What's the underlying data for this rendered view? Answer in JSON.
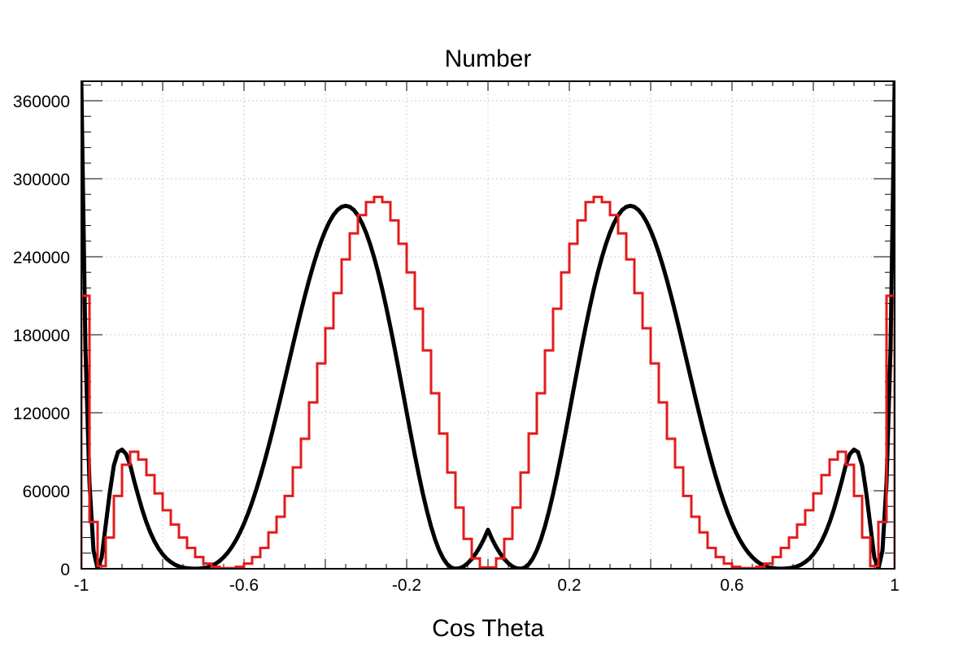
{
  "chart_data": {
    "type": "line",
    "title": "Number",
    "xlabel": "Cos Theta",
    "ylabel": "",
    "xlim": [
      -1,
      1
    ],
    "ylim": [
      0,
      375000
    ],
    "xticks": [
      -1,
      -0.6,
      -0.2,
      0.2,
      0.6,
      1
    ],
    "xtick_labels": [
      "-1",
      "-0.6",
      "-0.2",
      "0.2",
      "0.6",
      "1"
    ],
    "yticks": [
      0,
      60000,
      120000,
      180000,
      240000,
      300000,
      360000
    ],
    "ytick_labels": [
      "0",
      "60000",
      "120000",
      "180000",
      "240000",
      "300000",
      "360000"
    ],
    "grid": true,
    "series": [
      {
        "style": "smooth-curve",
        "color": "#000000",
        "x": [
          -1.0,
          -0.99,
          -0.98,
          -0.97,
          -0.96,
          -0.95,
          -0.94,
          -0.93,
          -0.92,
          -0.91,
          -0.9,
          -0.89,
          -0.88,
          -0.87,
          -0.86,
          -0.85,
          -0.84,
          -0.83,
          -0.82,
          -0.81,
          -0.8,
          -0.79,
          -0.78,
          -0.77,
          -0.76,
          -0.75,
          -0.74,
          -0.73,
          -0.72,
          -0.71,
          -0.7,
          -0.69,
          -0.68,
          -0.67,
          -0.66,
          -0.65,
          -0.64,
          -0.63,
          -0.62,
          -0.61,
          -0.6,
          -0.59,
          -0.58,
          -0.57,
          -0.56,
          -0.55,
          -0.54,
          -0.53,
          -0.52,
          -0.51,
          -0.5,
          -0.49,
          -0.48,
          -0.47,
          -0.46,
          -0.45,
          -0.44,
          -0.43,
          -0.42,
          -0.41,
          -0.4,
          -0.39,
          -0.38,
          -0.37,
          -0.36,
          -0.35,
          -0.34,
          -0.33,
          -0.32,
          -0.31,
          -0.3,
          -0.29,
          -0.28,
          -0.27,
          -0.26,
          -0.25,
          -0.24,
          -0.23,
          -0.22,
          -0.21,
          -0.2,
          -0.19,
          -0.18,
          -0.17,
          -0.16,
          -0.15,
          -0.14,
          -0.13,
          -0.12,
          -0.11,
          -0.1,
          -0.09,
          -0.08,
          -0.07,
          -0.06,
          -0.05,
          -0.04,
          -0.03,
          -0.02,
          -0.01,
          0.0,
          0.01,
          0.02,
          0.03,
          0.04,
          0.05,
          0.06,
          0.07,
          0.08,
          0.09,
          0.1,
          0.11,
          0.12,
          0.13,
          0.14,
          0.15,
          0.16,
          0.17,
          0.18,
          0.19,
          0.2,
          0.21,
          0.22,
          0.23,
          0.24,
          0.25,
          0.26,
          0.27,
          0.28,
          0.29,
          0.3,
          0.31,
          0.32,
          0.33,
          0.34,
          0.35,
          0.36,
          0.37,
          0.38,
          0.39,
          0.4,
          0.41,
          0.42,
          0.43,
          0.44,
          0.45,
          0.46,
          0.47,
          0.48,
          0.49,
          0.5,
          0.51,
          0.52,
          0.53,
          0.54,
          0.55,
          0.56,
          0.57,
          0.58,
          0.59,
          0.6,
          0.61,
          0.62,
          0.63,
          0.64,
          0.65,
          0.66,
          0.67,
          0.68,
          0.69,
          0.7,
          0.71,
          0.72,
          0.73,
          0.74,
          0.75,
          0.76,
          0.77,
          0.78,
          0.79,
          0.8,
          0.81,
          0.82,
          0.83,
          0.84,
          0.85,
          0.86,
          0.87,
          0.88,
          0.89,
          0.9,
          0.91,
          0.92,
          0.93,
          0.94,
          0.95,
          0.96,
          0.97,
          0.98,
          0.99,
          1.0
        ],
        "y": [
          375000,
          171000,
          66000,
          14000,
          0,
          8600,
          33700,
          58700,
          79500,
          89700,
          91700,
          88300,
          80000,
          67500,
          56000,
          45200,
          35700,
          27700,
          21000,
          15500,
          11100,
          7700,
          5100,
          3200,
          1800,
          900,
          400,
          100,
          0,
          100,
          400,
          1100,
          2200,
          3800,
          6000,
          8900,
          12400,
          16700,
          21800,
          27800,
          34700,
          42500,
          51200,
          60700,
          71000,
          82000,
          93700,
          105900,
          118600,
          131600,
          144900,
          158300,
          171700,
          184900,
          197800,
          210200,
          222000,
          233000,
          243100,
          252200,
          260100,
          266800,
          272100,
          276000,
          278400,
          279200,
          278400,
          276000,
          271800,
          266000,
          258700,
          249800,
          239500,
          227800,
          214900,
          200900,
          185900,
          170200,
          153900,
          137200,
          120400,
          103700,
          87500,
          72000,
          57500,
          44300,
          32500,
          22400,
          14100,
          7800,
          3400,
          900,
          0,
          400,
          1800,
          4200,
          7500,
          11700,
          16800,
          22900,
          30000,
          22900,
          16800,
          11700,
          7500,
          4200,
          1800,
          400,
          0,
          900,
          3400,
          7800,
          14100,
          22400,
          32500,
          44300,
          57500,
          72000,
          87500,
          103700,
          120400,
          137200,
          153900,
          170200,
          185900,
          200900,
          214900,
          227800,
          239500,
          249800,
          258700,
          266000,
          271800,
          276000,
          278400,
          279200,
          278400,
          276000,
          272100,
          266800,
          260100,
          252200,
          243100,
          233000,
          222000,
          210200,
          197800,
          184900,
          171700,
          158300,
          144900,
          131600,
          118600,
          105900,
          93700,
          82000,
          71000,
          60700,
          51200,
          42500,
          34700,
          27800,
          21800,
          16700,
          12400,
          8900,
          6000,
          3800,
          2200,
          1100,
          400,
          100,
          0,
          100,
          400,
          900,
          1800,
          3200,
          5100,
          7700,
          11100,
          15500,
          21000,
          27700,
          35700,
          45200,
          56000,
          67500,
          80000,
          88300,
          91700,
          89700,
          79500,
          58700,
          33700,
          8600,
          0,
          14000,
          66000,
          171000,
          375000
        ]
      },
      {
        "style": "histogram-step",
        "color": "#e31b1b",
        "bin_edges": [
          -1.0,
          -0.98,
          -0.96,
          -0.94,
          -0.92,
          -0.9,
          -0.88,
          -0.86,
          -0.84,
          -0.82,
          -0.8,
          -0.78,
          -0.76,
          -0.74,
          -0.72,
          -0.7,
          -0.68,
          -0.66,
          -0.64,
          -0.62,
          -0.6,
          -0.58,
          -0.56,
          -0.54,
          -0.52,
          -0.5,
          -0.48,
          -0.46,
          -0.44,
          -0.42,
          -0.4,
          -0.38,
          -0.36,
          -0.34,
          -0.32,
          -0.3,
          -0.28,
          -0.26,
          -0.24,
          -0.22,
          -0.2,
          -0.18,
          -0.16,
          -0.14,
          -0.12,
          -0.1,
          -0.08,
          -0.06,
          -0.04,
          -0.02,
          0.0,
          0.02,
          0.04,
          0.06,
          0.08,
          0.1,
          0.12,
          0.14,
          0.16,
          0.18,
          0.2,
          0.22,
          0.24,
          0.26,
          0.28,
          0.3,
          0.32,
          0.34,
          0.36,
          0.38,
          0.4,
          0.42,
          0.44,
          0.46,
          0.48,
          0.5,
          0.52,
          0.54,
          0.56,
          0.58,
          0.6,
          0.62,
          0.64,
          0.66,
          0.68,
          0.7,
          0.72,
          0.74,
          0.76,
          0.78,
          0.8,
          0.82,
          0.84,
          0.86,
          0.88,
          0.9,
          0.92,
          0.94,
          0.96,
          0.98,
          1.0
        ],
        "values": [
          210000,
          36000,
          2000,
          24000,
          56000,
          80000,
          90000,
          84000,
          72000,
          58000,
          45000,
          34000,
          24000,
          16000,
          9000,
          4000,
          1500,
          500,
          500,
          1500,
          4000,
          9000,
          16000,
          28000,
          40000,
          56000,
          78000,
          100000,
          128000,
          158000,
          185000,
          212000,
          238000,
          258000,
          272000,
          282000,
          286000,
          282000,
          268000,
          250000,
          228000,
          200000,
          168000,
          135000,
          104000,
          74000,
          47000,
          23000,
          8000,
          1000,
          1000,
          8000,
          23000,
          47000,
          74000,
          104000,
          135000,
          168000,
          200000,
          228000,
          250000,
          268000,
          282000,
          286000,
          282000,
          272000,
          258000,
          238000,
          212000,
          185000,
          158000,
          128000,
          100000,
          78000,
          56000,
          40000,
          28000,
          16000,
          9000,
          4000,
          1500,
          500,
          500,
          1500,
          4000,
          9000,
          16000,
          24000,
          34000,
          45000,
          58000,
          72000,
          84000,
          90000,
          80000,
          56000,
          24000,
          2000,
          36000,
          210000
        ]
      }
    ]
  }
}
